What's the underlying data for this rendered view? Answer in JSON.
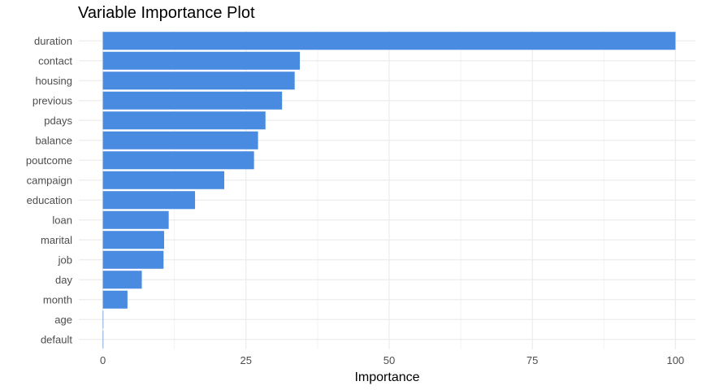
{
  "chart_data": {
    "type": "bar",
    "orientation": "horizontal",
    "title": "Variable Importance Plot",
    "xlabel": "Importance",
    "ylabel": "",
    "xlim": [
      -4.2,
      103.5
    ],
    "xticks": [
      0,
      25,
      50,
      75,
      100
    ],
    "categories": [
      "duration",
      "contact",
      "housing",
      "previous",
      "pdays",
      "balance",
      "poutcome",
      "campaign",
      "education",
      "loan",
      "marital",
      "job",
      "day",
      "month",
      "age",
      "default"
    ],
    "values": [
      100,
      34.4,
      33.5,
      31.3,
      28.4,
      27.1,
      26.4,
      21.2,
      16.1,
      11.5,
      10.7,
      10.6,
      6.8,
      4.3,
      0,
      0
    ],
    "colors": {
      "bar": "#4a8be2",
      "grid_major": "#ebebeb",
      "grid_minor": "#f3f3f3",
      "text": "#4d4d4d"
    },
    "grid": true,
    "legend": "none"
  }
}
